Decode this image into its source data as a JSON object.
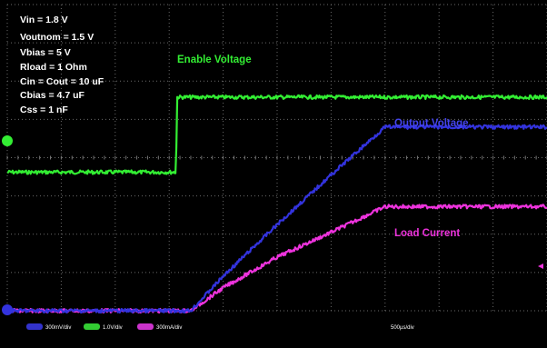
{
  "chart_data": {
    "type": "line",
    "title": "",
    "background": "#000000",
    "grid": true,
    "grid_divisions": {
      "x": 10,
      "y": 8
    },
    "conditions": [
      "Vin = 1.8 V",
      "Voutnom = 1.5 V",
      "Vbias = 5 V",
      "Rload = 1 Ohm",
      "Cin = Cout = 10 uF",
      "Cbias = 4.7 uF",
      "Css = 1 nF"
    ],
    "time_scale": "500µs/div",
    "series": [
      {
        "name": "Enable Voltage",
        "color": "#33ee33",
        "scale": "1.0V/div",
        "channel": "C2",
        "x_div": [
          0,
          3.13,
          3.14,
          10
        ],
        "y_div": [
          3.62,
          3.62,
          5.58,
          5.58
        ]
      },
      {
        "name": "Output Voltage",
        "color": "#3333dd",
        "scale": "300mV/div",
        "channel": "C1",
        "x_div": [
          0,
          3.4,
          4.0,
          5.0,
          6.0,
          7.0,
          10
        ],
        "y_div": [
          0,
          0,
          0.9,
          2.25,
          3.55,
          4.8,
          4.8
        ]
      },
      {
        "name": "Load Current",
        "color": "#ee33dd",
        "scale": "300mA/div",
        "channel": "C4",
        "x_div": [
          0,
          3.4,
          4.0,
          5.0,
          6.0,
          7.0,
          10
        ],
        "y_div": [
          0,
          0,
          0.6,
          1.4,
          2.05,
          2.72,
          2.72
        ]
      }
    ]
  }
}
